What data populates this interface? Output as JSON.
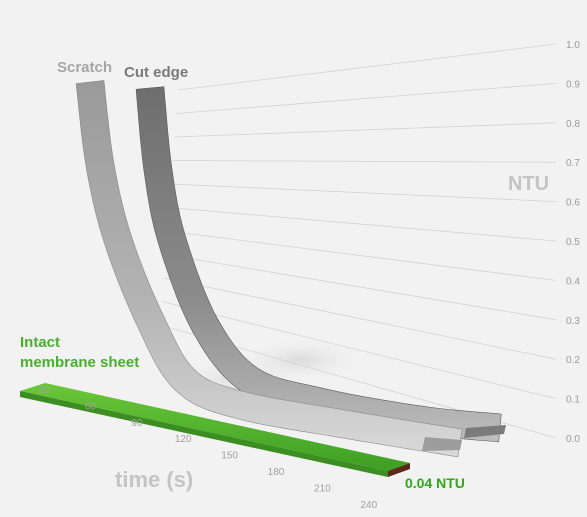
{
  "chart_data": {
    "type": "line",
    "x_label": "time (s)",
    "y_label": "NTU",
    "x": [
      30,
      60,
      90,
      120,
      150,
      180,
      210,
      240
    ],
    "y_ticks": [
      "1.0",
      "0.9",
      "0.8",
      "0.7",
      "0.6",
      "0.5",
      "0.4",
      "0.3",
      "0.2",
      "0.1",
      "0.0"
    ],
    "ylim": [
      0,
      1.0
    ],
    "grid": true,
    "series": [
      {
        "name": "Scratch",
        "values": [
          0.98,
          0.72,
          0.38,
          0.17,
          0.07,
          0.03,
          0.02,
          0.02
        ],
        "color": "#a6a6a6"
      },
      {
        "name": "Cut edge",
        "values": [
          0.98,
          0.75,
          0.42,
          0.19,
          0.08,
          0.04,
          0.03,
          0.03
        ],
        "color": "#7a7a7a"
      },
      {
        "name": "Intact membrane sheet",
        "values": [
          0.04,
          0.04,
          0.04,
          0.04,
          0.04,
          0.04,
          0.04,
          0.04
        ],
        "color": "#48b02e"
      }
    ],
    "annotations": [
      {
        "text": "0.04 NTU",
        "color": "#2ea814"
      }
    ]
  }
}
